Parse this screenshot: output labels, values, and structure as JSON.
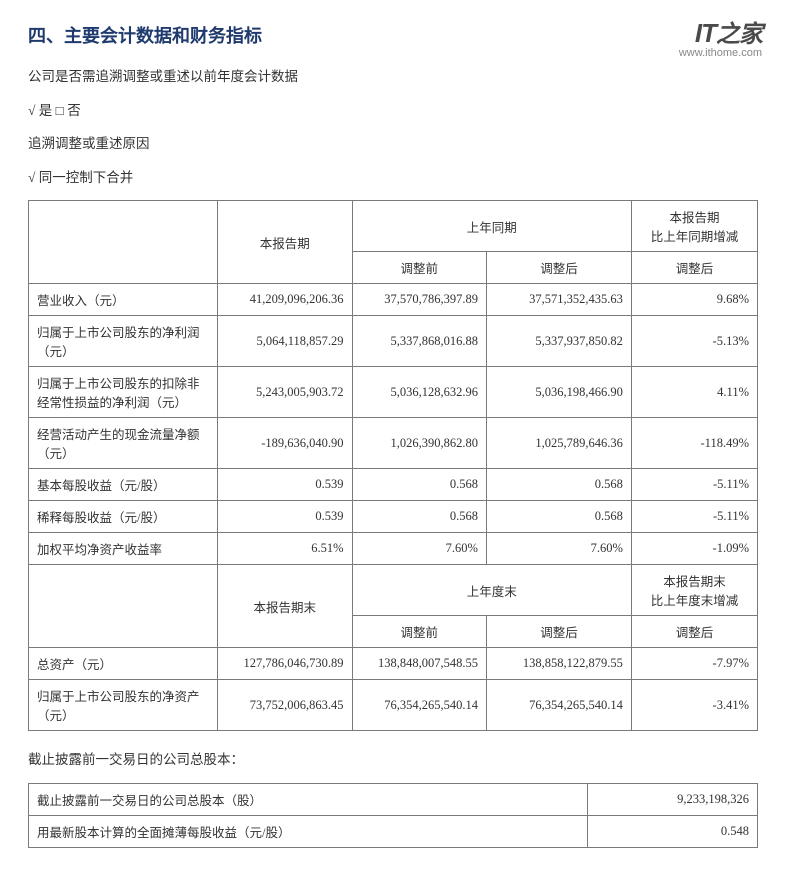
{
  "watermark": {
    "logo_text": "IT之家",
    "url_text": "www.ithome.com",
    "logo_color": "#4a4a4a"
  },
  "heading": "四、主要会计数据和财务指标",
  "intro_lines": [
    "公司是否需追溯调整或重述以前年度会计数据",
    "√ 是 □ 否",
    "追溯调整或重述原因",
    "√ 同一控制下合并"
  ],
  "table1": {
    "header": {
      "blank": "",
      "current_period": "本报告期",
      "prior_period": "上年同期",
      "change": "本报告期\n比上年同期增减",
      "before_adj": "调整前",
      "after_adj": "调整后",
      "after_adj2": "调整后"
    },
    "rows": [
      {
        "label": "营业收入（元）",
        "cur": "41,209,096,206.36",
        "before": "37,570,786,397.89",
        "after": "37,571,352,435.63",
        "chg": "9.68%"
      },
      {
        "label": "归属于上市公司股东的净利润（元）",
        "cur": "5,064,118,857.29",
        "before": "5,337,868,016.88",
        "after": "5,337,937,850.82",
        "chg": "-5.13%"
      },
      {
        "label": "归属于上市公司股东的扣除非经常性损益的净利润（元）",
        "cur": "5,243,005,903.72",
        "before": "5,036,128,632.96",
        "after": "5,036,198,466.90",
        "chg": "4.11%"
      },
      {
        "label": "经营活动产生的现金流量净额（元）",
        "cur": "-189,636,040.90",
        "before": "1,026,390,862.80",
        "after": "1,025,789,646.36",
        "chg": "-118.49%"
      },
      {
        "label": "基本每股收益（元/股）",
        "cur": "0.539",
        "before": "0.568",
        "after": "0.568",
        "chg": "-5.11%"
      },
      {
        "label": "稀释每股收益（元/股）",
        "cur": "0.539",
        "before": "0.568",
        "after": "0.568",
        "chg": "-5.11%"
      },
      {
        "label": "加权平均净资产收益率",
        "cur": "6.51%",
        "before": "7.60%",
        "after": "7.60%",
        "chg": "-1.09%"
      }
    ],
    "header2": {
      "current_end": "本报告期末",
      "prior_end": "上年度末",
      "change_end": "本报告期末\n比上年度末增减",
      "before_adj": "调整前",
      "after_adj": "调整后",
      "after_adj2": "调整后"
    },
    "rows2": [
      {
        "label": "总资产（元）",
        "cur": "127,786,046,730.89",
        "before": "138,848,007,548.55",
        "after": "138,858,122,879.55",
        "chg": "-7.97%"
      },
      {
        "label": "归属于上市公司股东的净资产（元）",
        "cur": "73,752,006,863.45",
        "before": "76,354,265,540.14",
        "after": "76,354,265,540.14",
        "chg": "-3.41%"
      }
    ]
  },
  "note_line": "截止披露前一交易日的公司总股本：",
  "table2": {
    "rows": [
      {
        "label": "截止披露前一交易日的公司总股本（股）",
        "val": "9,233,198,326"
      },
      {
        "label": "用最新股本计算的全面摊薄每股收益（元/股）",
        "val": "0.548"
      }
    ]
  },
  "style": {
    "heading_color": "#1f3a6e",
    "border_color": "#7a7a7a",
    "text_color": "#333333",
    "font_family": "SimSun",
    "heading_fontsize": 18,
    "body_fontsize": 13.5,
    "table_fontsize": 12.5
  }
}
